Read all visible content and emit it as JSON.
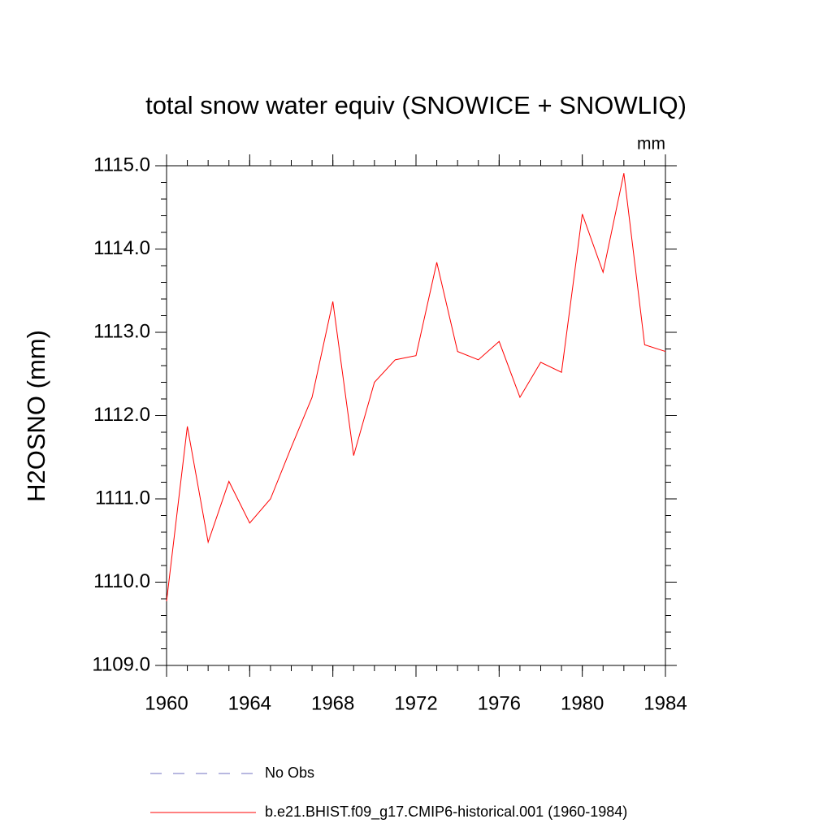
{
  "chart_data": {
    "type": "line",
    "title": "total snow water equiv (SNOWICE + SNOWLIQ)",
    "units": "mm",
    "y_label": "H2OSNO  (mm)",
    "x": [
      1960,
      1961,
      1962,
      1963,
      1964,
      1965,
      1966,
      1967,
      1968,
      1969,
      1970,
      1971,
      1972,
      1973,
      1974,
      1975,
      1976,
      1977,
      1978,
      1979,
      1980,
      1981,
      1982,
      1983,
      1984
    ],
    "series": [
      {
        "name": "No Obs",
        "color": "#7070c0",
        "dash": true,
        "values": [
          null,
          null,
          null,
          null,
          null,
          null,
          null,
          null,
          null,
          null,
          null,
          null,
          null,
          null,
          null,
          null,
          null,
          null,
          null,
          null,
          null,
          null,
          null,
          null,
          null
        ]
      },
      {
        "name": "b.e21.BHIST.f09_g17.CMIP6-historical.001 (1960-1984)",
        "color": "#ff0000",
        "dash": false,
        "values": [
          1109.77,
          1111.87,
          1110.48,
          1111.21,
          1110.71,
          1111.0,
          1111.62,
          1112.22,
          1113.37,
          1111.52,
          1112.4,
          1112.67,
          1112.72,
          1113.84,
          1112.77,
          1112.67,
          1112.89,
          1112.22,
          1112.64,
          1112.52,
          1114.42,
          1113.72,
          1114.91,
          1112.85,
          1112.77
        ]
      }
    ],
    "xlim": [
      1960,
      1984
    ],
    "xticks": [
      1960,
      1964,
      1968,
      1972,
      1976,
      1980,
      1984
    ],
    "x_minor_step": 1,
    "ylim": [
      1109,
      1115
    ],
    "yticks": [
      {
        "value": 1109,
        "label": "1109.0"
      },
      {
        "value": 1110,
        "label": "1110.0"
      },
      {
        "value": 1111,
        "label": "1111.0"
      },
      {
        "value": 1112,
        "label": "1112.0"
      },
      {
        "value": 1113,
        "label": "1113.0"
      },
      {
        "value": 1114,
        "label": "1114.0"
      },
      {
        "value": 1115,
        "label": "1115.0"
      }
    ],
    "y_minor_step": 0.2,
    "grid": false
  }
}
